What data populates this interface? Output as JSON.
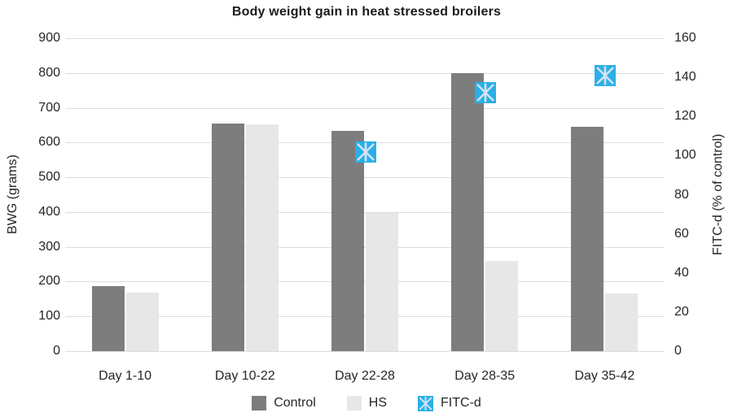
{
  "chart_data": {
    "type": "bar",
    "title": "Body weight gain in heat stressed broilers",
    "categories": [
      "Day 1-10",
      "Day 10-22",
      "Day 22-28",
      "Day 28-35",
      "Day 35-42"
    ],
    "series": [
      {
        "name": "Control",
        "type": "bar",
        "axis": "left",
        "color": "#7d7d7d",
        "values": [
          188,
          655,
          633,
          800,
          645
        ]
      },
      {
        "name": "HS",
        "type": "bar",
        "axis": "left",
        "color": "#e7e7e7",
        "values": [
          168,
          652,
          398,
          260,
          165
        ]
      },
      {
        "name": "FITC-d",
        "type": "scatter",
        "axis": "right",
        "color": "#29b0e6",
        "marker": "square-with-star",
        "marker_line_color": "#d8e2f2",
        "values": [
          null,
          null,
          102,
          132,
          141
        ]
      }
    ],
    "left_axis": {
      "label": "BWG (grams)",
      "min": 0,
      "max": 900,
      "step": 100,
      "ticks": [
        0,
        100,
        200,
        300,
        400,
        500,
        600,
        700,
        800,
        900
      ]
    },
    "right_axis": {
      "label": "FITC-d (% of control)",
      "min": 0,
      "max": 160,
      "step": 20,
      "ticks": [
        0,
        20,
        40,
        60,
        80,
        100,
        120,
        140,
        160
      ]
    },
    "grid": true,
    "legend_position": "bottom",
    "gridline_color": "#dcdcdc",
    "background_color": "#ffffff",
    "text_color": "#262626"
  }
}
